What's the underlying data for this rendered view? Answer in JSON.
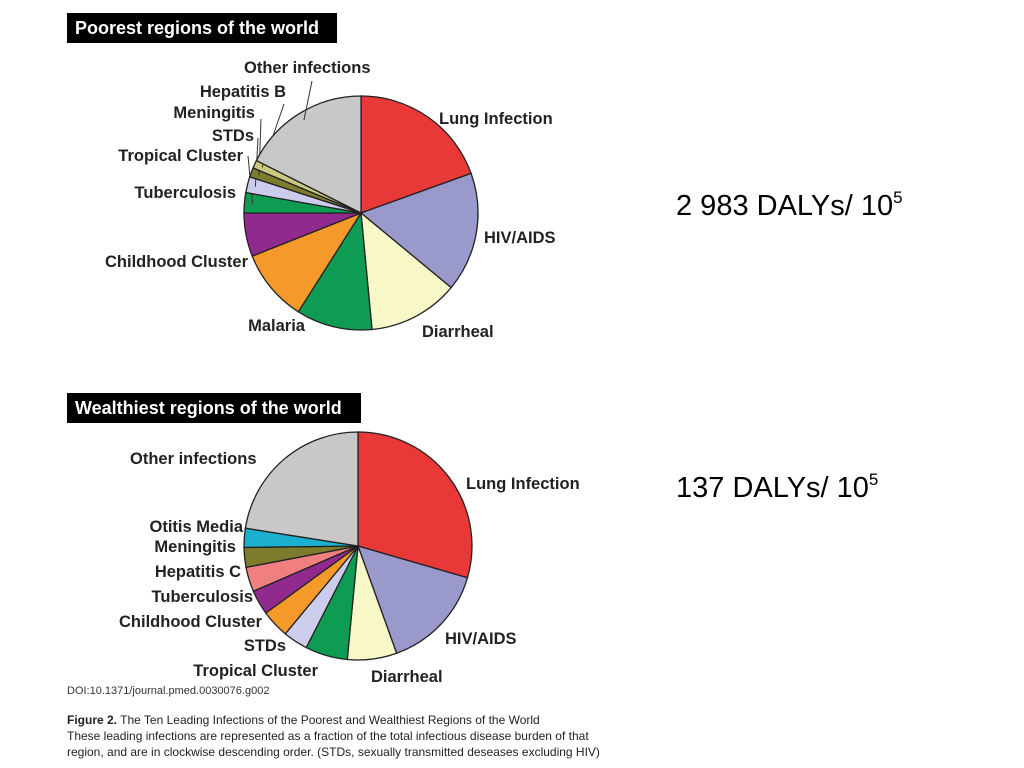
{
  "chart_data": [
    {
      "type": "pie",
      "title": "Poorest regions of the world",
      "total_label": "2 983 DALYs/ 10",
      "total_superscript": "5",
      "slices": [
        {
          "label": "Lung Infection",
          "value": 19.5,
          "color": "#e83838"
        },
        {
          "label": "HIV/AIDS",
          "value": 16.5,
          "color": "#9999cc"
        },
        {
          "label": "Diarrheal",
          "value": 12.5,
          "color": "#f7f7c8"
        },
        {
          "label": "Malaria",
          "value": 10.5,
          "color": "#0e9c54"
        },
        {
          "label": "Childhood Cluster",
          "value": 10,
          "color": "#f5992a"
        },
        {
          "label": "Tuberculosis",
          "value": 6,
          "color": "#912a8e"
        },
        {
          "label": "Tropical Cluster",
          "value": 2.8,
          "color": "#0e9c54"
        },
        {
          "label": "STDs",
          "value": 2.2,
          "color": "#ccccec"
        },
        {
          "label": "Meningitis",
          "value": 1.3,
          "color": "#7c7c2c"
        },
        {
          "label": "Hepatitis B",
          "value": 1.1,
          "color": "#c8c880"
        },
        {
          "label": "Other infections",
          "value": 17.6,
          "color": "#c8c8c8"
        }
      ]
    },
    {
      "type": "pie",
      "title": "Wealthiest regions of the world",
      "total_label": "137 DALYs/ 10",
      "total_superscript": "5",
      "slices": [
        {
          "label": "Lung Infection",
          "value": 29.5,
          "color": "#e83838"
        },
        {
          "label": "HIV/AIDS",
          "value": 15,
          "color": "#9999cc"
        },
        {
          "label": "Diarrheal",
          "value": 7,
          "color": "#f7f7c8"
        },
        {
          "label": "Tropical Cluster",
          "value": 6,
          "color": "#0e9c54"
        },
        {
          "label": "STDs",
          "value": 3.5,
          "color": "#ccccec"
        },
        {
          "label": "Childhood Cluster",
          "value": 4,
          "color": "#f5992a"
        },
        {
          "label": "Tuberculosis",
          "value": 3.5,
          "color": "#912a8e"
        },
        {
          "label": "Hepatitis C",
          "value": 3.5,
          "color": "#f08080"
        },
        {
          "label": "Meningitis",
          "value": 2.8,
          "color": "#7c7c2c"
        },
        {
          "label": "Otitis Media",
          "value": 2.7,
          "color": "#1cb0d0"
        },
        {
          "label": "Other infections",
          "value": 22.5,
          "color": "#c8c8c8"
        }
      ]
    }
  ],
  "doi": "DOI:10.1371/journal.pmed.0030076.g002",
  "caption": {
    "figure": "Figure 2.",
    "title": " The Ten Leading Infections of the Poorest and Wealthiest Regions of the World",
    "body": "These leading infections are represented as a fraction of the total infectious disease burden of that region, and are in clockwise descending order. (STDs, sexually transmitted deseases excluding HIV)"
  }
}
